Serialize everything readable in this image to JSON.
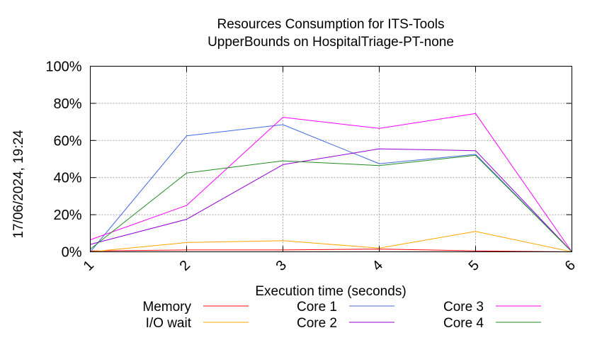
{
  "chart_data": {
    "type": "line",
    "title_line1": "Resources Consumption for ITS-Tools",
    "title_line2": "UpperBounds on HospitalTriage-PT-none",
    "xlabel": "Execution time (seconds)",
    "ylabel": "",
    "timestamp": "17/06/2024, 19:24",
    "x": [
      1,
      2,
      3,
      4,
      5,
      6
    ],
    "xlim": [
      1,
      6
    ],
    "ylim": [
      0,
      100
    ],
    "x_ticks": [
      "1",
      "2",
      "3",
      "4",
      "5",
      "6"
    ],
    "y_ticks": [
      "0%",
      "20%",
      "40%",
      "60%",
      "80%",
      "100%"
    ],
    "y_tick_values": [
      0,
      20,
      40,
      60,
      80,
      100
    ],
    "grid": true,
    "legend_position": "bottom",
    "series": [
      {
        "name": "Memory",
        "color": "#ff0000",
        "values": [
          0.5,
          1,
          1,
          1.5,
          0.5,
          0
        ]
      },
      {
        "name": "I/O wait",
        "color": "#ffa500",
        "values": [
          0,
          5,
          6,
          2,
          11,
          0
        ]
      },
      {
        "name": "Core 1",
        "color": "#4169e1",
        "values": [
          0,
          62.5,
          68.5,
          47.5,
          52.5,
          0
        ]
      },
      {
        "name": "Core 2",
        "color": "#9400d3",
        "values": [
          4,
          17.5,
          47,
          55.5,
          54.5,
          0
        ]
      },
      {
        "name": "Core 3",
        "color": "#ff00ff",
        "values": [
          6.5,
          25,
          72.5,
          66.5,
          74.5,
          0
        ]
      },
      {
        "name": "Core 4",
        "color": "#228b22",
        "values": [
          1.5,
          42.5,
          49,
          46.5,
          52,
          0
        ]
      }
    ]
  }
}
